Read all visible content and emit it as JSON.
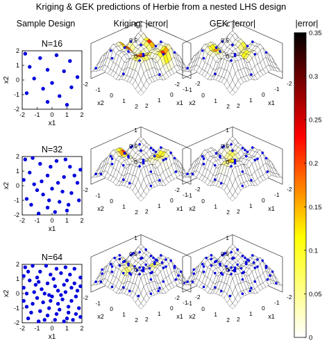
{
  "title": "Kriging & GEK predictions of Herbie from a nested LHS design",
  "column_headers": [
    "Sample Design",
    "Kriging: |error|",
    "GEK: |error|",
    "|error|"
  ],
  "chart_data": [
    {
      "type": "scatter",
      "title": "N=16",
      "xlabel": "x1",
      "ylabel": "x2",
      "xlim": [
        -2,
        2
      ],
      "ylim": [
        -2,
        2
      ],
      "xticks": [
        -2,
        -1,
        0,
        1,
        2
      ],
      "yticks": [
        -2,
        -1,
        0,
        1,
        2
      ],
      "points": [
        [
          -1.8,
          1.8
        ],
        [
          -0.8,
          1.5
        ],
        [
          0.3,
          1.7
        ],
        [
          1.2,
          1.3
        ],
        [
          -1.5,
          0.9
        ],
        [
          -0.3,
          0.7
        ],
        [
          0.8,
          0.6
        ],
        [
          1.7,
          0.2
        ],
        [
          -1.2,
          0.1
        ],
        [
          0.0,
          -0.2
        ],
        [
          -0.6,
          -0.6
        ],
        [
          1.3,
          -0.5
        ],
        [
          -1.7,
          -0.9
        ],
        [
          0.5,
          -1.1
        ],
        [
          -0.3,
          -1.5
        ],
        [
          1.0,
          -1.7
        ]
      ]
    },
    {
      "type": "scatter",
      "title": "N=32",
      "xlabel": "x1",
      "ylabel": "x2",
      "xlim": [
        -2,
        2
      ],
      "ylim": [
        -2,
        2
      ],
      "xticks": [
        -2,
        -1,
        0,
        1,
        2
      ],
      "yticks": [
        -2,
        -1,
        0,
        1,
        2
      ],
      "points": [
        [
          -1.8,
          1.8
        ],
        [
          -0.8,
          1.5
        ],
        [
          0.3,
          1.7
        ],
        [
          1.2,
          1.3
        ],
        [
          -1.5,
          0.9
        ],
        [
          -0.3,
          0.7
        ],
        [
          0.8,
          0.6
        ],
        [
          1.7,
          0.2
        ],
        [
          -1.2,
          0.1
        ],
        [
          0.0,
          -0.2
        ],
        [
          -0.6,
          -0.6
        ],
        [
          1.3,
          -0.5
        ],
        [
          -1.7,
          -0.9
        ],
        [
          0.5,
          -1.1
        ],
        [
          -0.3,
          -1.5
        ],
        [
          1.0,
          -1.7
        ],
        [
          -1.3,
          1.9
        ],
        [
          -0.1,
          1.3
        ],
        [
          0.9,
          1.8
        ],
        [
          1.9,
          1.1
        ],
        [
          -1.9,
          0.4
        ],
        [
          -0.7,
          0.3
        ],
        [
          0.4,
          0.2
        ],
        [
          1.5,
          0.7
        ],
        [
          -1.0,
          -0.3
        ],
        [
          0.7,
          -0.4
        ],
        [
          1.8,
          -1.0
        ],
        [
          -1.4,
          -1.3
        ],
        [
          -0.2,
          -1.0
        ],
        [
          1.1,
          -1.3
        ],
        [
          -0.9,
          -1.9
        ],
        [
          0.2,
          -1.8
        ]
      ]
    },
    {
      "type": "scatter",
      "title": "N=64",
      "xlabel": "x1",
      "ylabel": "x2",
      "xlim": [
        -2,
        2
      ],
      "ylim": [
        -2,
        2
      ],
      "xticks": [
        -2,
        -1,
        0,
        1,
        2
      ],
      "yticks": [
        -2,
        -1,
        0,
        1,
        2
      ],
      "points": [
        [
          -1.8,
          1.8
        ],
        [
          -0.8,
          1.5
        ],
        [
          0.3,
          1.7
        ],
        [
          1.2,
          1.3
        ],
        [
          -1.5,
          0.9
        ],
        [
          -0.3,
          0.7
        ],
        [
          0.8,
          0.6
        ],
        [
          1.7,
          0.2
        ],
        [
          -1.2,
          0.1
        ],
        [
          0.0,
          -0.2
        ],
        [
          -0.6,
          -0.6
        ],
        [
          1.3,
          -0.5
        ],
        [
          -1.7,
          -0.9
        ],
        [
          0.5,
          -1.1
        ],
        [
          -0.3,
          -1.5
        ],
        [
          1.0,
          -1.7
        ],
        [
          -1.3,
          1.9
        ],
        [
          -0.1,
          1.3
        ],
        [
          0.9,
          1.8
        ],
        [
          1.9,
          1.1
        ],
        [
          -1.9,
          0.4
        ],
        [
          -0.7,
          0.3
        ],
        [
          0.4,
          0.2
        ],
        [
          1.5,
          0.7
        ],
        [
          -1.0,
          -0.3
        ],
        [
          0.7,
          -0.4
        ],
        [
          1.8,
          -1.0
        ],
        [
          -1.4,
          -1.3
        ],
        [
          -0.2,
          -1.0
        ],
        [
          1.1,
          -1.3
        ],
        [
          -0.9,
          -1.9
        ],
        [
          0.2,
          -1.8
        ],
        [
          -1.6,
          1.5
        ],
        [
          -1.0,
          1.1
        ],
        [
          -0.4,
          1.9
        ],
        [
          0.1,
          1.0
        ],
        [
          0.6,
          1.4
        ],
        [
          1.5,
          1.7
        ],
        [
          1.0,
          0.9
        ],
        [
          1.6,
          -0.2
        ],
        [
          -1.7,
          0.0
        ],
        [
          -1.1,
          0.6
        ],
        [
          -0.5,
          0.0
        ],
        [
          0.2,
          0.5
        ],
        [
          0.9,
          0.1
        ],
        [
          1.9,
          0.5
        ],
        [
          -1.9,
          -0.5
        ],
        [
          -1.3,
          -0.7
        ],
        [
          -0.8,
          -1.2
        ],
        [
          -0.1,
          -0.5
        ],
        [
          0.4,
          -0.7
        ],
        [
          1.1,
          -0.9
        ],
        [
          1.6,
          -1.4
        ],
        [
          -1.6,
          -1.7
        ],
        [
          -0.5,
          -1.8
        ],
        [
          0.3,
          -1.4
        ],
        [
          0.8,
          -1.9
        ],
        [
          1.4,
          -1.8
        ],
        [
          1.9,
          -1.6
        ],
        [
          -1.9,
          1.2
        ],
        [
          -0.2,
          -0.1
        ],
        [
          0.6,
          -0.1
        ],
        [
          -0.9,
          0.8
        ],
        [
          1.3,
          0.4
        ]
      ]
    },
    {
      "type": "heatmap",
      "title": "Kriging: |error|",
      "row_label": "N=16",
      "xlabel": "x1",
      "ylabel": "x2",
      "xticks": [
        -2,
        -1,
        0,
        1,
        2
      ],
      "yticks": [
        -2,
        -1,
        0,
        1,
        2
      ],
      "zticks": [
        0,
        0.5,
        1
      ],
      "error_peaks": [
        [
          -0.9,
          0.3,
          0.33
        ],
        [
          0.2,
          0.0,
          0.34
        ],
        [
          0.9,
          0.9,
          0.27
        ],
        [
          -0.3,
          -1.1,
          0.24
        ],
        [
          1.2,
          -0.6,
          0.22
        ]
      ]
    },
    {
      "type": "heatmap",
      "title": "GEK: |error|",
      "row_label": "N=16",
      "xlabel": "x1",
      "ylabel": "x2",
      "xticks": [
        -2,
        -1,
        0,
        1,
        2
      ],
      "yticks": [
        -2,
        -1,
        0,
        1,
        2
      ],
      "zticks": [
        0,
        0.5,
        1
      ],
      "error_peaks": [
        [
          -0.6,
          0.8,
          0.17
        ],
        [
          0.8,
          -0.2,
          0.12
        ],
        [
          0.0,
          -1.0,
          0.1
        ]
      ]
    },
    {
      "type": "heatmap",
      "title": "Kriging: |error|",
      "row_label": "N=32",
      "xlabel": "x1",
      "ylabel": "x2",
      "xticks": [
        -2,
        -1,
        0,
        1,
        2
      ],
      "yticks": [
        -2,
        -1,
        0,
        1,
        2
      ],
      "zticks": [
        0,
        0.5,
        1
      ],
      "error_peaks": [
        [
          -0.8,
          0.6,
          0.22
        ],
        [
          0.3,
          0.2,
          0.25
        ],
        [
          0.9,
          -0.6,
          0.16
        ]
      ]
    },
    {
      "type": "heatmap",
      "title": "GEK: |error|",
      "row_label": "N=32",
      "xlabel": "x1",
      "ylabel": "x2",
      "xticks": [
        -2,
        -1,
        0,
        1,
        2
      ],
      "yticks": [
        -2,
        -1,
        0,
        1,
        2
      ],
      "zticks": [
        0,
        0.5,
        1
      ],
      "error_peaks": [
        [
          0.6,
          0.9,
          0.2
        ],
        [
          -0.4,
          -0.3,
          0.08
        ]
      ]
    },
    {
      "type": "heatmap",
      "title": "Kriging: |error|",
      "row_label": "N=64",
      "xlabel": "x1",
      "ylabel": "x2",
      "xticks": [
        -2,
        -1,
        0,
        1,
        2
      ],
      "yticks": [
        -2,
        -1,
        0,
        1,
        2
      ],
      "zticks": [
        0,
        0.5,
        1
      ],
      "error_peaks": [
        [
          -0.5,
          0.4,
          0.1
        ],
        [
          0.6,
          -0.4,
          0.09
        ],
        [
          0.0,
          1.0,
          0.08
        ]
      ]
    },
    {
      "type": "heatmap",
      "title": "GEK: |error|",
      "row_label": "N=64",
      "xlabel": "x1",
      "ylabel": "x2",
      "xticks": [
        -2,
        -1,
        0,
        1,
        2
      ],
      "yticks": [
        -2,
        -1,
        0,
        1,
        2
      ],
      "zticks": [
        0,
        0.5,
        1
      ],
      "error_peaks": [
        [
          0.2,
          0.3,
          0.03
        ]
      ]
    },
    {
      "type": "heatmap",
      "title": "|error|",
      "colorbar_range": [
        0,
        0.35
      ],
      "colorbar_ticks": [
        0,
        0.05,
        0.1,
        0.15,
        0.2,
        0.25,
        0.3,
        0.35
      ],
      "colormap": "hot (reversed: white → yellow → red → black)"
    }
  ]
}
